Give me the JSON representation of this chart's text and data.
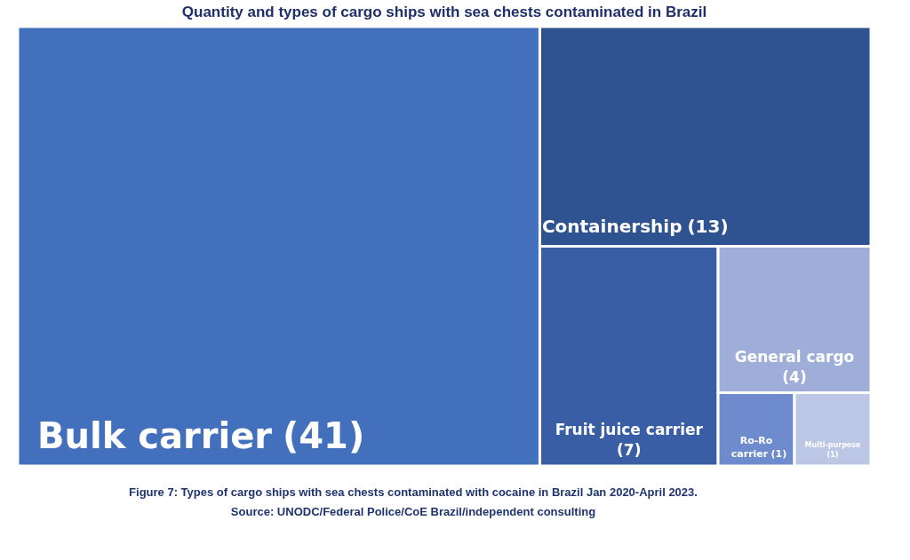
{
  "chart_data": {
    "type": "other",
    "title": "Quantity and types of cargo ships with sea chests contaminated in Brazil",
    "categories": [
      "Bulk carrier",
      "Containership",
      "Fruit juice carrier",
      "General cargo",
      "Ro-Ro carrier",
      "Multi-purpose"
    ],
    "values": [
      41,
      13,
      7,
      4,
      1,
      1
    ],
    "value_labels": [
      "(41)",
      "(13)",
      "(7)",
      "(4)",
      "(1)",
      "(1)"
    ],
    "colors": [
      "#4270bd",
      "#2f5290",
      "#395ea6",
      "#9eaed8",
      "#6e8ccd",
      "#bcc7e5"
    ],
    "annotations": [
      "Figure 7: Types of cargo ships with sea chests contaminated with cocaine in Brazil Jan 2020-April 2023.",
      "Source: UNODC/Federal Police/CoE Brazil/independent consulting"
    ]
  }
}
